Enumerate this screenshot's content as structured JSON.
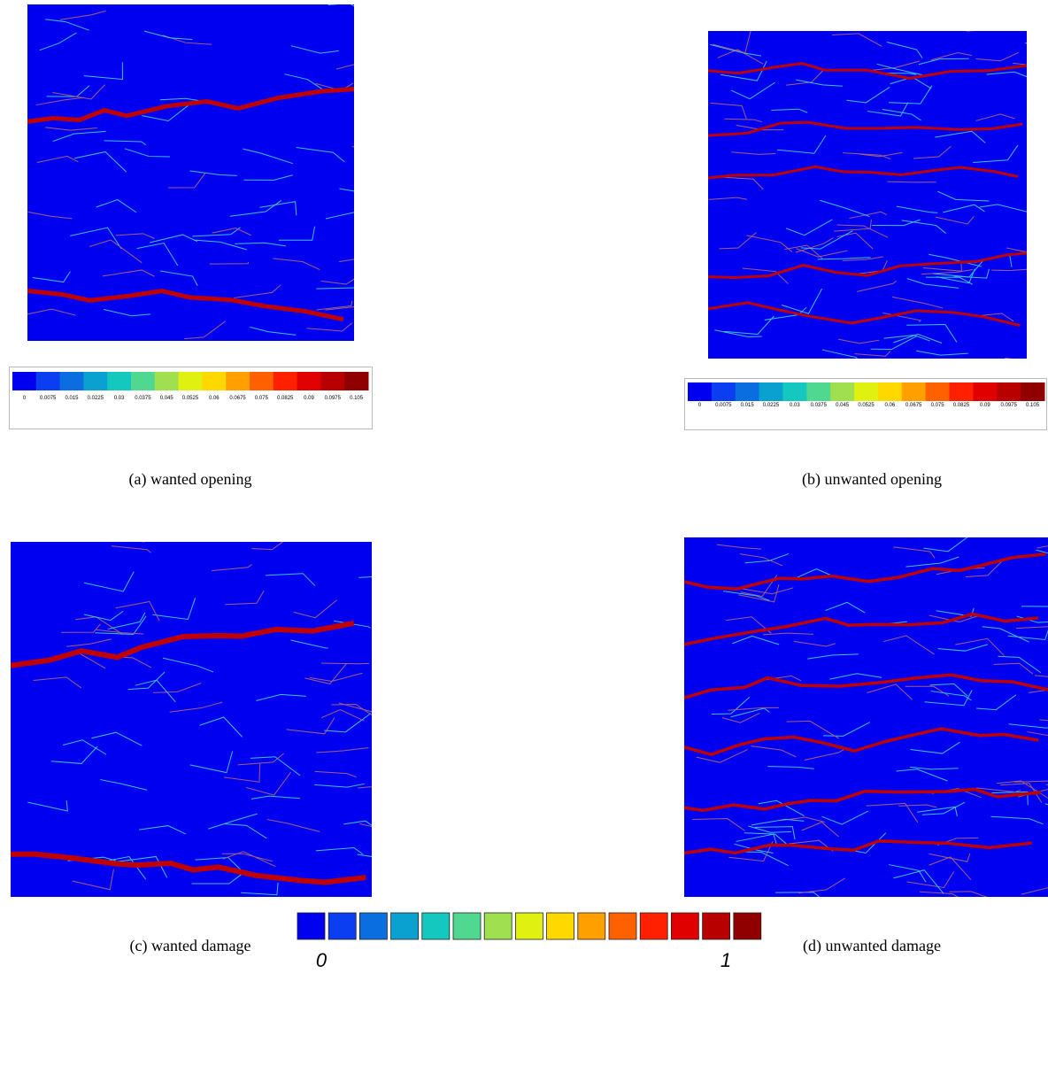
{
  "panels": [
    {
      "caption": "(a) wanted opening"
    },
    {
      "caption": "(b) unwanted opening"
    },
    {
      "caption": "(c) wanted damage"
    },
    {
      "caption": "(d) unwanted damage"
    }
  ],
  "opening_colorbar": {
    "labels": [
      "0",
      "0.0075",
      "0.015",
      "0.0225",
      "0.03",
      "0.0375",
      "0.045",
      "0.0525",
      "0.06",
      "0.0675",
      "0.075",
      "0.0825",
      "0.09",
      "0.0975",
      "0.105"
    ]
  },
  "damage_legend": {
    "min_label": "0",
    "max_label": "1"
  },
  "colors": [
    "#0000f0",
    "#0a3ef0",
    "#0a6ee0",
    "#0aa0d0",
    "#14c8c0",
    "#50d890",
    "#a0e050",
    "#e0f010",
    "#ffd800",
    "#ffa000",
    "#ff6000",
    "#ff2000",
    "#e00000",
    "#b80000",
    "#900000"
  ]
}
